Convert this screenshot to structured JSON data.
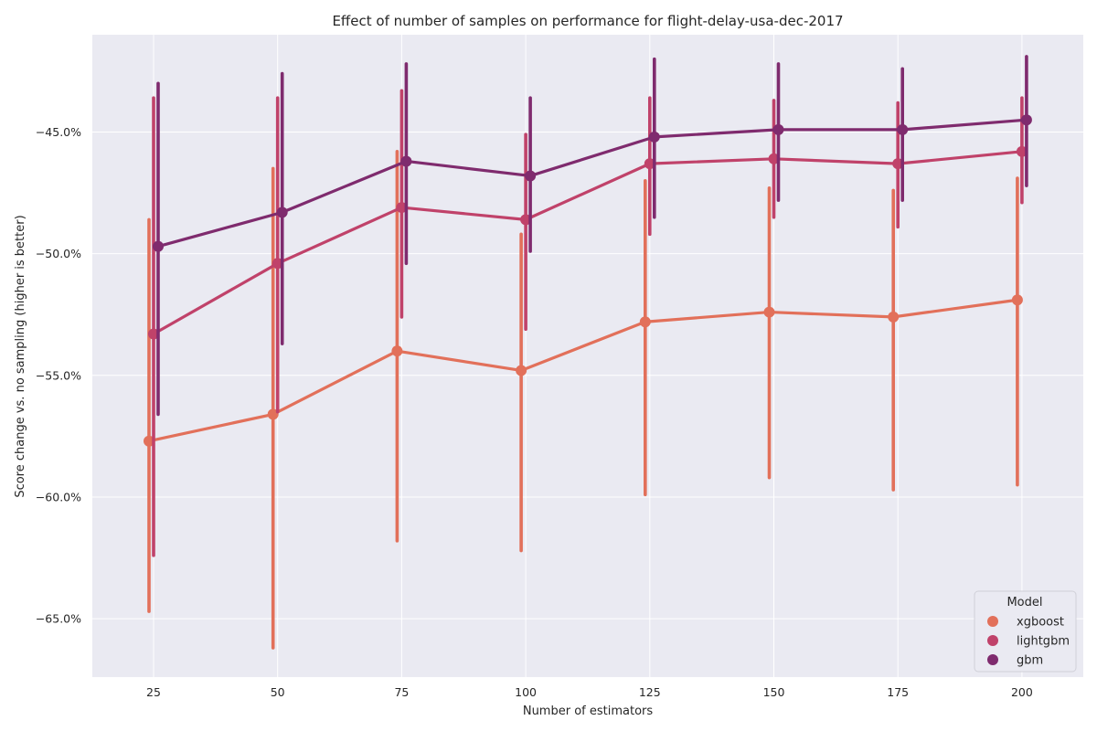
{
  "chart_data": {
    "type": "line",
    "title": "Effect of number of samples on performance for flight-delay-usa-dec-2017",
    "xlabel": "Number of estimators",
    "ylabel": "Score change vs. no sampling (higher is better)",
    "categories": [
      "25",
      "50",
      "75",
      "100",
      "125",
      "150",
      "175",
      "200"
    ],
    "y_ticks": [
      -45,
      -50,
      -55,
      -60,
      -65
    ],
    "y_tick_labels": [
      "−45.0%",
      "−50.0%",
      "−55.0%",
      "−60.0%",
      "−65.0%"
    ],
    "ylim": [
      -67.4,
      -41.0
    ],
    "grid": true,
    "legend": {
      "title": "Model",
      "placement": "lower-right"
    },
    "series": [
      {
        "name": "xgboost",
        "color": "#e2705a",
        "values": [
          -57.7,
          -56.6,
          -54.0,
          -54.8,
          -52.8,
          -52.4,
          -52.6,
          -51.9
        ],
        "ci_low": [
          -64.7,
          -66.2,
          -61.8,
          -62.2,
          -59.9,
          -59.2,
          -59.7,
          -59.5
        ],
        "ci_high": [
          -48.6,
          -46.5,
          -45.8,
          -49.2,
          -47.0,
          -47.3,
          -47.4,
          -46.9
        ]
      },
      {
        "name": "lightgbm",
        "color": "#c0426a",
        "values": [
          -53.3,
          -50.4,
          -48.1,
          -48.6,
          -46.3,
          -46.1,
          -46.3,
          -45.8
        ],
        "ci_low": [
          -62.4,
          -56.5,
          -52.6,
          -53.1,
          -49.2,
          -48.5,
          -48.9,
          -47.9
        ],
        "ci_high": [
          -43.6,
          -43.6,
          -43.3,
          -45.1,
          -43.6,
          -43.7,
          -43.8,
          -43.6
        ]
      },
      {
        "name": "gbm",
        "color": "#7f2b6e",
        "values": [
          -49.7,
          -48.3,
          -46.2,
          -46.8,
          -45.2,
          -44.9,
          -44.9,
          -44.5
        ],
        "ci_low": [
          -56.6,
          -53.7,
          -50.4,
          -49.9,
          -48.5,
          -47.8,
          -47.8,
          -47.2
        ],
        "ci_high": [
          -43.0,
          -42.6,
          -42.2,
          -43.6,
          -42.0,
          -42.2,
          -42.4,
          -41.9
        ]
      }
    ]
  }
}
